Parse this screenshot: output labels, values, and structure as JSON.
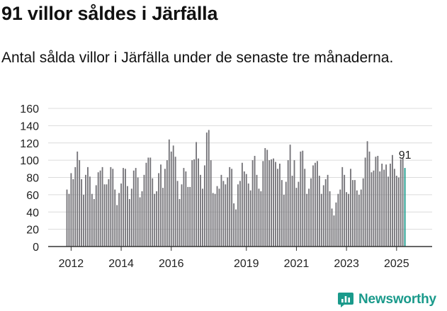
{
  "header": {
    "title": "91 villor såldes i Järfälla",
    "subtitle": "Antal sålda villor i Järfälla under de senaste tre månaderna."
  },
  "brand": {
    "name": "Newsworthy",
    "icon": "newsworthy-chart-icon",
    "color": "#1a9a8b"
  },
  "chart_data": {
    "type": "bar",
    "title": "91 villor såldes i Järfälla",
    "subtitle": "Antal sålda villor i Järfälla under de senaste tre månaderna.",
    "xlabel": "",
    "ylabel": "",
    "ylim": [
      0,
      160
    ],
    "yticks": [
      "0",
      "20",
      "40",
      "60",
      "80",
      "100",
      "120",
      "140",
      "160"
    ],
    "xticks": [
      "2012",
      "2014",
      "2016",
      "2019",
      "2021",
      "2023",
      "2025"
    ],
    "xtick_indices": [
      2,
      26,
      50,
      86,
      110,
      134,
      158
    ],
    "grid": true,
    "bar_color": "#747378",
    "highlight_color": "#1a9a8b",
    "highlight_label": "91",
    "start": "2011-11",
    "end": "2025-12",
    "values": [
      66,
      61,
      85,
      78,
      92,
      110,
      100,
      78,
      60,
      83,
      92,
      81,
      61,
      55,
      71,
      86,
      88,
      92,
      72,
      72,
      78,
      92,
      90,
      66,
      48,
      62,
      73,
      91,
      90,
      70,
      55,
      67,
      88,
      91,
      80,
      57,
      64,
      83,
      97,
      103,
      103,
      79,
      61,
      64,
      85,
      95,
      68,
      90,
      100,
      124,
      110,
      117,
      104,
      76,
      55,
      72,
      91,
      87,
      69,
      69,
      100,
      101,
      121,
      102,
      83,
      67,
      94,
      132,
      135,
      100,
      62,
      61,
      70,
      67,
      83,
      76,
      72,
      80,
      92,
      90,
      50,
      43,
      72,
      76,
      97,
      87,
      84,
      73,
      65,
      100,
      105,
      83,
      67,
      64,
      99,
      114,
      112,
      100,
      101,
      102,
      98,
      90,
      96,
      77,
      60,
      75,
      100,
      118,
      82,
      100,
      68,
      75,
      110,
      111,
      90,
      61,
      67,
      79,
      94,
      97,
      99,
      82,
      61,
      71,
      78,
      83,
      64,
      44,
      36,
      51,
      61,
      66,
      92,
      83,
      63,
      61,
      90,
      77,
      77,
      65,
      60,
      66,
      79,
      103,
      122,
      110,
      86,
      88,
      104,
      105,
      87,
      96,
      89,
      95,
      81,
      96,
      106,
      90,
      82,
      80,
      101,
      103,
      91
    ]
  }
}
